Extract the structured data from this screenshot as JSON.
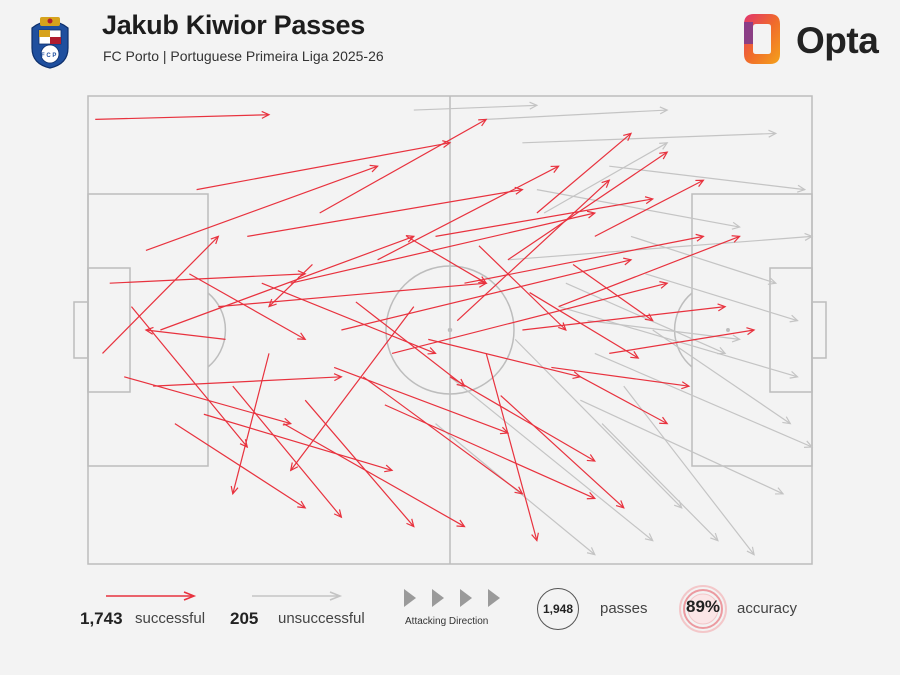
{
  "header": {
    "title": "Jakub Kiwior Passes",
    "subtitle": "FC Porto | Portuguese Primeira Liga 2025-26",
    "crest_icon": "fc-porto-crest-icon",
    "brand": "Opta"
  },
  "chart_data": {
    "type": "pass-map",
    "pitch": {
      "length": 100,
      "width": 100,
      "attacking_direction": "left-to-right"
    },
    "series": [
      {
        "name": "successful",
        "count": 1743,
        "color": "#e8323e"
      },
      {
        "name": "unsuccessful",
        "count": 205,
        "color": "#c4c4c4"
      }
    ],
    "passes_sample": {
      "successful": [
        [
          1,
          5,
          25,
          4
        ],
        [
          3,
          40,
          30,
          38
        ],
        [
          5,
          60,
          28,
          70
        ],
        [
          8,
          33,
          40,
          15
        ],
        [
          10,
          50,
          45,
          30
        ],
        [
          12,
          70,
          30,
          88
        ],
        [
          15,
          20,
          50,
          10
        ],
        [
          18,
          45,
          55,
          40
        ],
        [
          20,
          62,
          35,
          90
        ],
        [
          22,
          30,
          60,
          20
        ],
        [
          25,
          55,
          20,
          85
        ],
        [
          28,
          40,
          70,
          25
        ],
        [
          30,
          65,
          45,
          92
        ],
        [
          32,
          25,
          55,
          5
        ],
        [
          35,
          50,
          75,
          35
        ],
        [
          38,
          60,
          60,
          85
        ],
        [
          40,
          35,
          65,
          15
        ],
        [
          42,
          55,
          80,
          40
        ],
        [
          45,
          45,
          28,
          80
        ],
        [
          48,
          30,
          78,
          22
        ],
        [
          50,
          60,
          70,
          78
        ],
        [
          52,
          40,
          85,
          30
        ],
        [
          55,
          55,
          62,
          95
        ],
        [
          58,
          35,
          80,
          12
        ],
        [
          60,
          50,
          88,
          45
        ],
        [
          62,
          25,
          75,
          8
        ],
        [
          65,
          45,
          90,
          30
        ],
        [
          68,
          60,
          80,
          70
        ],
        [
          70,
          30,
          85,
          18
        ],
        [
          72,
          55,
          92,
          50
        ],
        [
          2,
          55,
          18,
          30
        ],
        [
          6,
          45,
          22,
          75
        ],
        [
          9,
          62,
          35,
          60
        ],
        [
          14,
          38,
          30,
          52
        ],
        [
          16,
          68,
          42,
          80
        ],
        [
          19,
          52,
          8,
          50
        ],
        [
          24,
          40,
          48,
          55
        ],
        [
          27,
          70,
          52,
          92
        ],
        [
          31,
          36,
          25,
          45
        ],
        [
          34,
          58,
          58,
          72
        ],
        [
          37,
          44,
          52,
          62
        ],
        [
          41,
          66,
          70,
          86
        ],
        [
          44,
          30,
          55,
          40
        ],
        [
          47,
          52,
          68,
          60
        ],
        [
          51,
          48,
          72,
          18
        ],
        [
          54,
          32,
          66,
          50
        ],
        [
          57,
          64,
          74,
          88
        ],
        [
          61,
          42,
          76,
          56
        ],
        [
          64,
          58,
          83,
          62
        ],
        [
          67,
          36,
          78,
          48
        ]
      ],
      "unsuccessful": [
        [
          55,
          5,
          80,
          3
        ],
        [
          60,
          10,
          95,
          8
        ],
        [
          62,
          20,
          90,
          28
        ],
        [
          58,
          35,
          100,
          30
        ],
        [
          65,
          45,
          98,
          60
        ],
        [
          70,
          55,
          100,
          75
        ],
        [
          68,
          65,
          96,
          85
        ],
        [
          72,
          15,
          99,
          20
        ],
        [
          75,
          30,
          95,
          40
        ],
        [
          66,
          40,
          88,
          55
        ],
        [
          48,
          70,
          70,
          98
        ],
        [
          50,
          60,
          78,
          95
        ],
        [
          45,
          3,
          62,
          2
        ],
        [
          78,
          50,
          97,
          70
        ],
        [
          74,
          62,
          92,
          98
        ],
        [
          63,
          25,
          80,
          10
        ],
        [
          69,
          48,
          90,
          52
        ],
        [
          71,
          70,
          87,
          95
        ],
        [
          59,
          52,
          82,
          88
        ],
        [
          77,
          38,
          98,
          48
        ]
      ]
    },
    "summary": {
      "passes": 1948,
      "accuracy_percent": 89
    }
  },
  "legend": {
    "successful_count": "1,743",
    "successful_label": "successful",
    "unsuccessful_count": "205",
    "unsuccessful_label": "unsuccessful",
    "direction_label": "Attacking Direction",
    "passes_value": "1,948",
    "passes_label": "passes",
    "accuracy_value": "89%",
    "accuracy_label": "accuracy"
  },
  "colors": {
    "successful": "#e8323e",
    "unsuccessful": "#c4c4c4",
    "pitch_line": "#bdbdbd",
    "background": "#f3f3f3"
  }
}
